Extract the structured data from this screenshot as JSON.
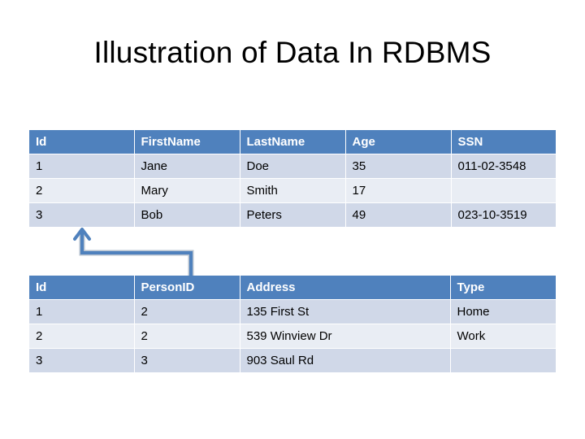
{
  "title": "Illustration of Data In RDBMS",
  "person_table": {
    "headers": [
      "Id",
      "FirstName",
      "LastName",
      "Age",
      "SSN"
    ],
    "rows": [
      [
        "1",
        "Jane",
        "Doe",
        "35",
        "011-02-3548"
      ],
      [
        "2",
        "Mary",
        "Smith",
        "17",
        ""
      ],
      [
        "3",
        "Bob",
        "Peters",
        "49",
        "023-10-3519"
      ]
    ]
  },
  "address_table": {
    "headers": [
      "Id",
      "PersonID",
      "Address",
      "Type"
    ],
    "rows": [
      [
        "1",
        "2",
        "135 First St",
        "Home"
      ],
      [
        "2",
        "2",
        "539 Winview Dr",
        "Work"
      ],
      [
        "3",
        "3",
        "903 Saul Rd",
        ""
      ]
    ]
  },
  "colors": {
    "header_bg": "#4f81bd",
    "row_dark": "#d0d8e8",
    "row_light": "#e9edf4",
    "arrow": "#4f81bd"
  }
}
